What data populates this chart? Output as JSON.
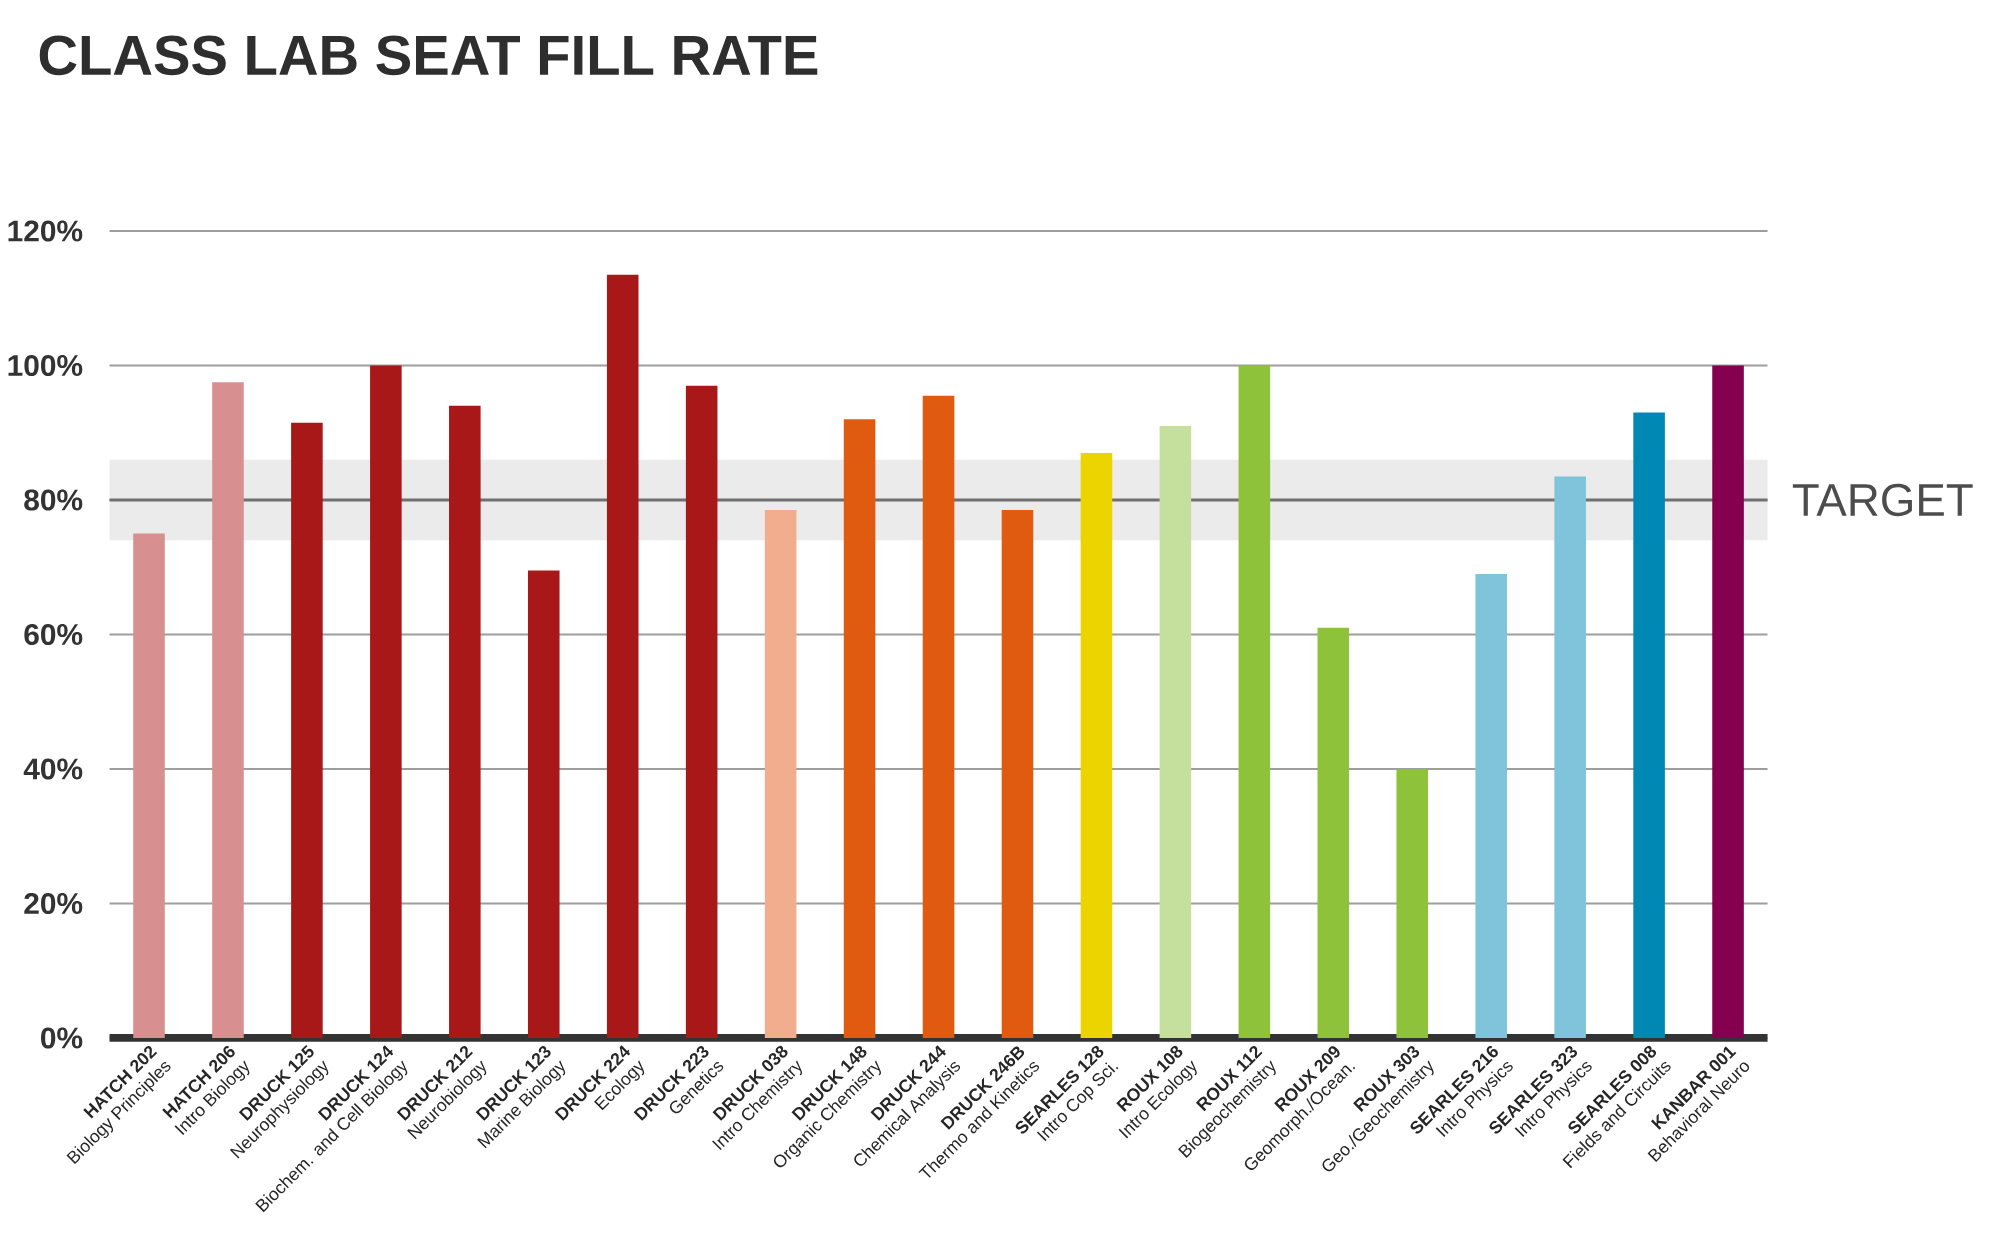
{
  "chart_data": {
    "type": "bar",
    "title": "CLASS LAB SEAT FILL RATE",
    "categories": [
      "**HATCH 202**\nBiology Principles",
      "**HATCH 206**\nIntro Biology",
      "**DRUCK 125**\nNeurophysiology",
      "**DRUCK 124**\nBiochem. and Cell Biology",
      "**DRUCK 212**\nNeurobiology",
      "**DRUCK 123**\nMarine Biology",
      "**DRUCK 224**\nEcology",
      "**DRUCK 223**\nGenetics",
      "**DRUCK 038**\nIntro Chemistry",
      "**DRUCK 148**\nOrganic Chemistry",
      "**DRUCK 244**\nChemical Analysis",
      "**DRUCK 246B**\nThermo and Kinetics",
      "**SEARLES 128**\nIntro Cop Sci.",
      "**ROUX 108**\nIntro Ecology",
      "**ROUX 112**\nBiogeochemistry",
      "**ROUX 209**\nGeomorph./Ocean.",
      "**ROUX 303**\nGeo./Geochemistry",
      "**SEARLES 216**\nIntro Physics",
      "**SEARLES 323**\nIntro Physics",
      "**SEARLES 008**\nFields and Circuits",
      "**KANBAR 001**\nBehavioral Neuro"
    ],
    "values": [
      75,
      97.5,
      91.5,
      100,
      94,
      69.5,
      113.5,
      97,
      78.5,
      92,
      95.5,
      78.5,
      87,
      91,
      100,
      61,
      40,
      69,
      83.5,
      93,
      100
    ],
    "colors": [
      "#d88f8f",
      "#d88f8f",
      "#a81818",
      "#a81818",
      "#a81818",
      "#a81818",
      "#a81818",
      "#a81818",
      "#f2ad8f",
      "#e05a10",
      "#e05a10",
      "#e05a10",
      "#ebd400",
      "#c5e09d",
      "#8dc23a",
      "#8dc23a",
      "#8dc23a",
      "#7fc4db",
      "#7fc4db",
      "#0088b5",
      "#85004f"
    ],
    "ylim": [
      0,
      120
    ],
    "yticks": [
      {
        "value": 0,
        "label": "0%"
      },
      {
        "value": 20,
        "label": "20%"
      },
      {
        "value": 40,
        "label": "40%"
      },
      {
        "value": 60,
        "label": "60%"
      },
      {
        "value": 80,
        "label": "80%"
      },
      {
        "value": 100,
        "label": "100%"
      },
      {
        "value": 120,
        "label": "120%"
      }
    ],
    "grid": "y",
    "bands": [
      {
        "axis": "y",
        "from": 74,
        "to": 86,
        "label": "TARGET",
        "color": "#ebebeb"
      }
    ],
    "ref_lines": [
      {
        "axis": "y",
        "value": 80,
        "color": "#707070"
      }
    ]
  }
}
